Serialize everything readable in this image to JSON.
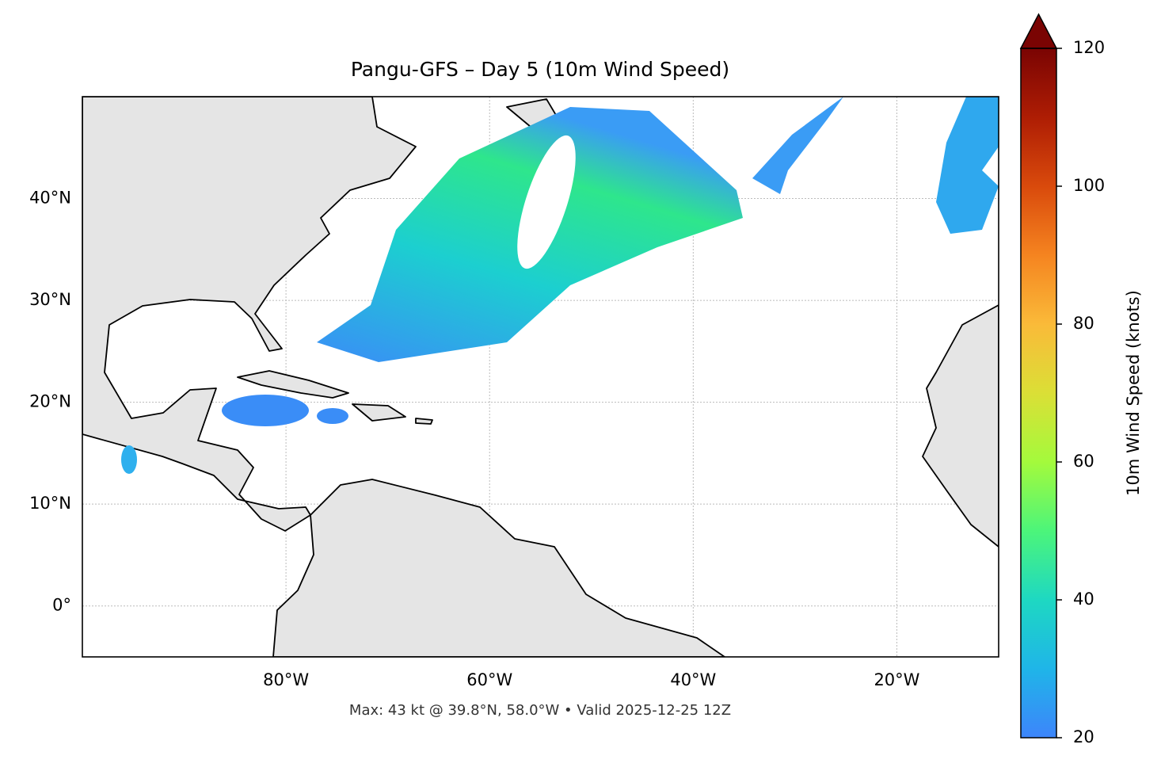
{
  "title": "Pangu-GFS – Day 5 (10m Wind Speed)",
  "footer": "Max: 43 kt @ 39.8°N, 58.0°W • Valid 2025-12-25 12Z",
  "lonlim": [
    -100,
    -10
  ],
  "latlim": [
    -5,
    50
  ],
  "xticks": [
    {
      "value": -80,
      "label": "80°W"
    },
    {
      "value": -60,
      "label": "60°W"
    },
    {
      "value": -40,
      "label": "40°W"
    },
    {
      "value": -20,
      "label": "20°W"
    }
  ],
  "yticks": [
    {
      "value": 0,
      "label": "0°"
    },
    {
      "value": 10,
      "label": "10°N"
    },
    {
      "value": 20,
      "label": "20°N"
    },
    {
      "value": 30,
      "label": "30°N"
    },
    {
      "value": 40,
      "label": "40°N"
    }
  ],
  "grid": true,
  "colorbar": {
    "label": "10m Wind Speed (knots)",
    "lim": [
      20,
      120
    ],
    "ticks": [
      20,
      40,
      60,
      80,
      100,
      120
    ]
  }
}
